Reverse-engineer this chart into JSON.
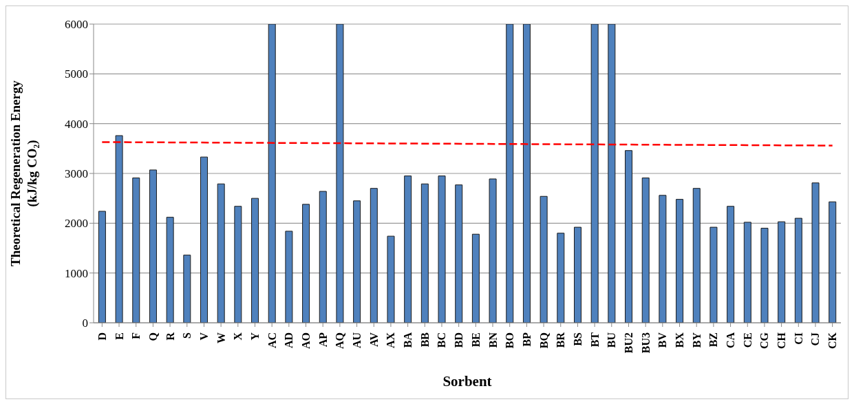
{
  "chart_data": {
    "type": "bar",
    "xlabel": "Sorbent",
    "ylabel": "Theoretical Regeneration Energy\n(kJ/kg CO₂)",
    "categories": [
      "D",
      "E",
      "F",
      "Q",
      "R",
      "S",
      "V",
      "W",
      "X",
      "Y",
      "AC",
      "AD",
      "AO",
      "AP",
      "AQ",
      "AU",
      "AV",
      "AX",
      "BA",
      "BB",
      "BC",
      "BD",
      "BE",
      "BN",
      "BO",
      "BP",
      "BQ",
      "BR",
      "BS",
      "BT",
      "BU",
      "BU2",
      "BU3",
      "BV",
      "BX",
      "BY",
      "BZ",
      "CA",
      "CE",
      "CG",
      "CH",
      "CI",
      "CJ",
      "CK"
    ],
    "series": [
      {
        "color": "#4f81bd",
        "values": [
          2240,
          3760,
          2910,
          3070,
          2120,
          1360,
          3330,
          2790,
          2340,
          2500,
          6000,
          1840,
          2380,
          2640,
          6000,
          2450,
          2700,
          1740,
          2950,
          2790,
          2950,
          2770,
          1780,
          2890,
          6000,
          6000,
          2540,
          1800,
          1920,
          6000,
          6000,
          3460,
          2910,
          2560,
          2480,
          2700,
          1920,
          2340,
          2020,
          1900,
          2030,
          2100,
          2810,
          2430
        ]
      },
      {
        "type": "line",
        "color": "#ff0000",
        "line_style": "dashed",
        "marker": "none",
        "values": [
          3630,
          null,
          null,
          null,
          null,
          null,
          null,
          null,
          null,
          null,
          null,
          null,
          null,
          null,
          null,
          null,
          null,
          null,
          null,
          null,
          null,
          null,
          null,
          null,
          null,
          null,
          null,
          null,
          null,
          null,
          null,
          null,
          null,
          null,
          null,
          null,
          null,
          null,
          null,
          null,
          null,
          null,
          null,
          3560
        ]
      }
    ],
    "ylim": [
      0,
      6000
    ],
    "yticks": [
      0,
      1000,
      2000,
      3000,
      4000,
      5000,
      6000
    ],
    "grid": "y"
  }
}
